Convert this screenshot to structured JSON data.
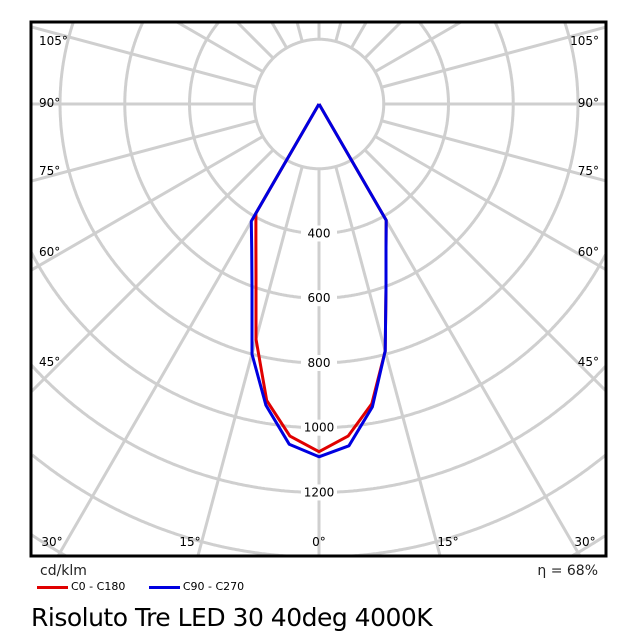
{
  "chart_data": {
    "type": "line",
    "coordinate_system": "polar",
    "title": "Risoluto Tre LED 30 40deg 4000K",
    "unit_label": "cd/klm",
    "efficiency_label": "η = 68%",
    "radial_ticks": [
      400,
      600,
      800,
      1000,
      1200
    ],
    "radial_grid_step": 200,
    "angle_grid_step_deg": 15,
    "angle_labels": {
      "left": [
        "105°",
        "90°",
        "75°",
        "60°",
        "45°"
      ],
      "right": [
        "105°",
        "90°",
        "75°",
        "60°",
        "45°"
      ],
      "bottom": [
        "30°",
        "15°",
        "0°",
        "15°",
        "30°"
      ]
    },
    "angles_deg": [
      -35,
      -30,
      -25,
      -20,
      -15,
      -10,
      -5,
      0,
      5,
      10,
      15,
      20,
      25,
      30,
      35
    ],
    "series": [
      {
        "name": "C0 - C180",
        "color": "#e00000",
        "values": [
          0,
          390,
          461,
          569,
          752,
          930,
          1030,
          1074,
          1030,
          940,
          790,
          605,
          490,
          415,
          0
        ]
      },
      {
        "name": "C90 - C270",
        "color": "#0000e0",
        "values": [
          0,
          418,
          492,
          605,
          800,
          945,
          1055,
          1090,
          1060,
          950,
          790,
          605,
          490,
          415,
          0
        ]
      }
    ]
  }
}
